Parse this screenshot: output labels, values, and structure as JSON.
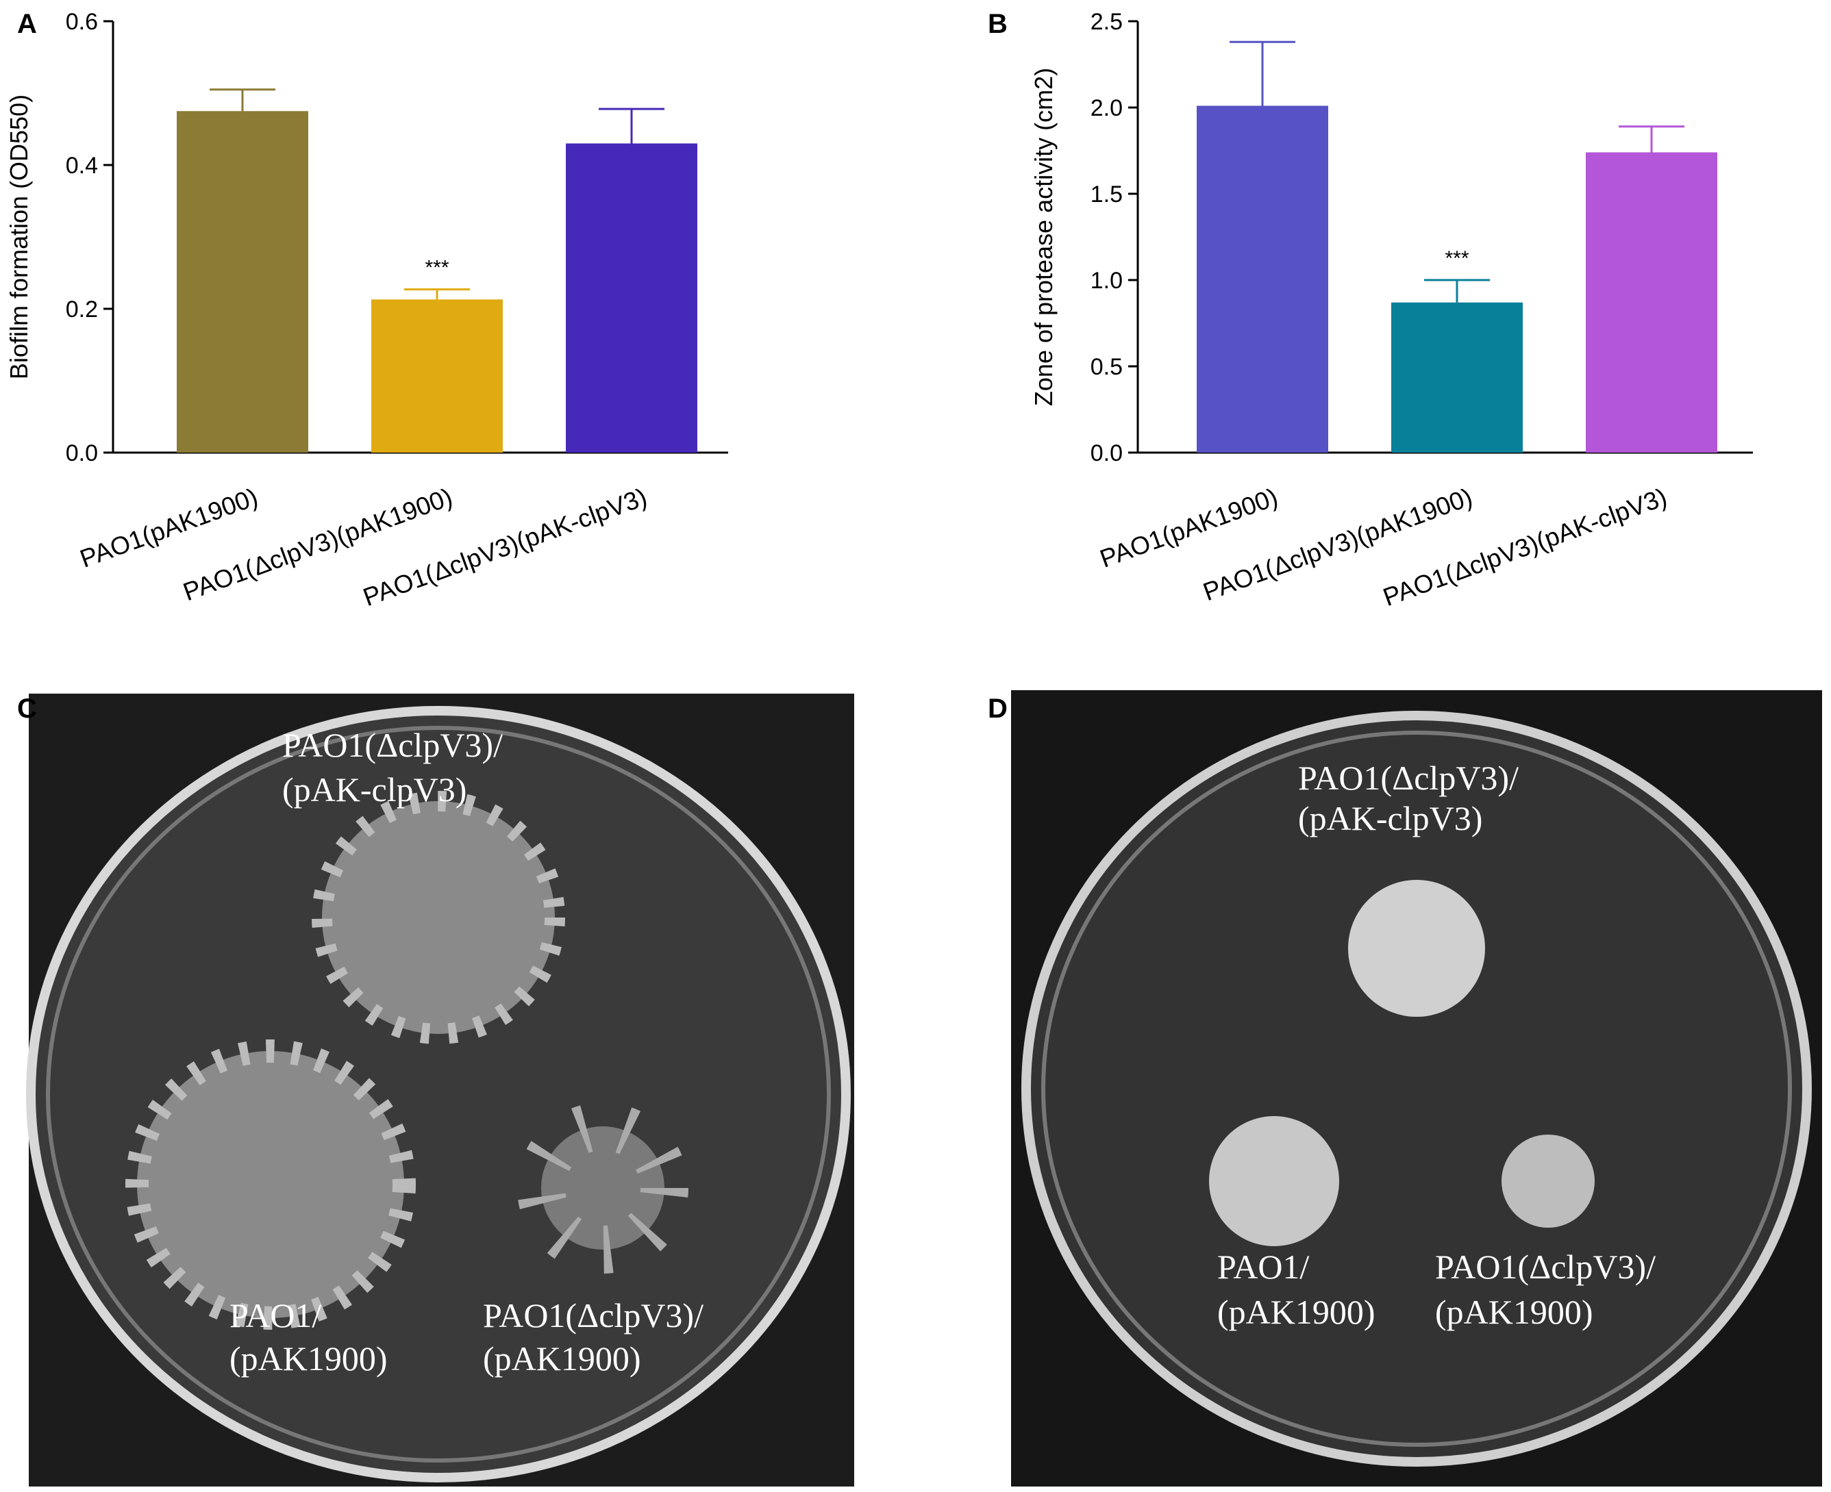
{
  "chart_data": [
    {
      "type": "bar",
      "panel": "A",
      "y_label": "Biofilm formation (OD550)",
      "categories": [
        "PAO1(pAK1900)",
        "PAO1(ΔclpV3)(pAK1900)",
        "PAO1(ΔclpV3)(pAK-clpV3)"
      ],
      "values": [
        0.475,
        0.213,
        0.43
      ],
      "errors": [
        0.03,
        0.014,
        0.048
      ],
      "value_annotations": [
        null,
        "***",
        null
      ],
      "colors": [
        "#8b7b35",
        "#e0ab10",
        "#4629b8"
      ],
      "ylim": [
        0,
        0.6
      ],
      "yticks": [
        {
          "value": 0,
          "label": "0.0"
        },
        0.2,
        0.4,
        0.6
      ]
    },
    {
      "type": "bar",
      "panel": "B",
      "y_label": "Zone of protease activity (cm2)",
      "categories": [
        "PAO1(pAK1900)",
        "PAO1(ΔclpV3)(pAK1900)",
        "PAO1(ΔclpV3)(pAK-clpV3)"
      ],
      "values": [
        2.01,
        0.87,
        1.74
      ],
      "errors": [
        0.37,
        0.13,
        0.15
      ],
      "value_annotations": [
        null,
        "***",
        null
      ],
      "colors": [
        "#5753c6",
        "#09809a",
        "#b456d8"
      ],
      "ylim": [
        0,
        2.5
      ],
      "yticks": [
        {
          "value": 0,
          "label": "0.0"
        },
        0.5,
        {
          "value": 1,
          "label": "1.0"
        },
        1.5,
        {
          "value": 2,
          "label": "2.0"
        },
        2.5
      ]
    }
  ],
  "photos": [
    {
      "panel": "C",
      "labels": [
        "PAO1(ΔclpV3)/",
        "(pAK-clpV3)",
        "PAO1/",
        "(pAK1900)",
        "PAO1(ΔclpV3)/",
        "(pAK1900)"
      ]
    },
    {
      "panel": "D",
      "labels": [
        "PAO1(ΔclpV3)/",
        "(pAK-clpV3)",
        "PAO1/",
        "(pAK1900)",
        "PAO1(ΔclpV3)/",
        "(pAK1900)"
      ]
    }
  ]
}
